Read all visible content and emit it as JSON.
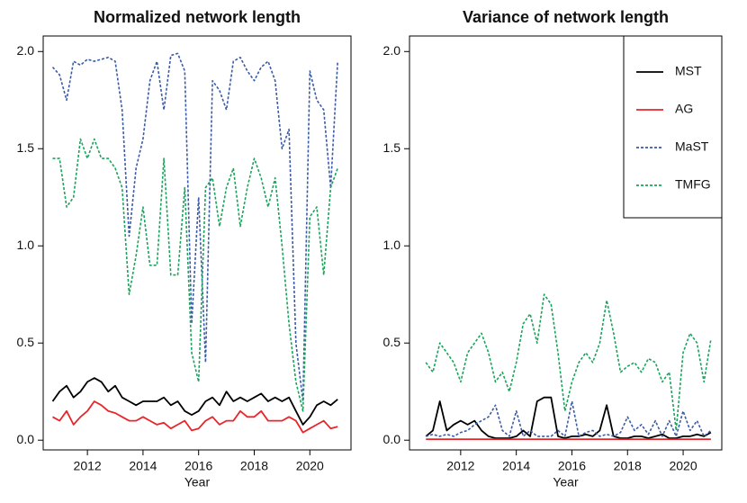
{
  "chart_data": [
    {
      "type": "line",
      "title": "Normalized network length",
      "x_label": "Year",
      "x": [
        2010.75,
        2011,
        2011.25,
        2011.5,
        2011.75,
        2012,
        2012.25,
        2012.5,
        2012.75,
        2013,
        2013.25,
        2013.5,
        2013.75,
        2014,
        2014.25,
        2014.5,
        2014.75,
        2015,
        2015.25,
        2015.5,
        2015.75,
        2016,
        2016.25,
        2016.5,
        2016.75,
        2017,
        2017.25,
        2017.5,
        2017.75,
        2018,
        2018.25,
        2018.5,
        2018.75,
        2019,
        2019.25,
        2019.5,
        2019.75,
        2020,
        2020.25,
        2020.5,
        2020.75,
        2021
      ],
      "series": [
        {
          "name": "MST",
          "color": "#000000",
          "dashed": false,
          "values": [
            0.2,
            0.25,
            0.28,
            0.22,
            0.25,
            0.3,
            0.32,
            0.3,
            0.25,
            0.28,
            0.22,
            0.2,
            0.18,
            0.2,
            0.2,
            0.2,
            0.22,
            0.18,
            0.2,
            0.15,
            0.13,
            0.15,
            0.2,
            0.22,
            0.18,
            0.25,
            0.2,
            0.22,
            0.2,
            0.22,
            0.24,
            0.2,
            0.22,
            0.2,
            0.22,
            0.15,
            0.08,
            0.12,
            0.18,
            0.2,
            0.18,
            0.21
          ]
        },
        {
          "name": "AG",
          "color": "#e8262a",
          "dashed": false,
          "values": [
            0.12,
            0.1,
            0.15,
            0.08,
            0.12,
            0.15,
            0.2,
            0.18,
            0.15,
            0.14,
            0.12,
            0.1,
            0.1,
            0.12,
            0.1,
            0.08,
            0.09,
            0.06,
            0.08,
            0.1,
            0.05,
            0.06,
            0.1,
            0.12,
            0.08,
            0.1,
            0.1,
            0.15,
            0.12,
            0.12,
            0.15,
            0.1,
            0.1,
            0.1,
            0.12,
            0.1,
            0.04,
            0.06,
            0.08,
            0.1,
            0.06,
            0.07
          ]
        },
        {
          "name": "MaST",
          "color": "#3a5aa8",
          "dashed": true,
          "values": [
            1.92,
            1.88,
            1.75,
            1.95,
            1.93,
            1.96,
            1.95,
            1.96,
            1.97,
            1.95,
            1.7,
            1.05,
            1.4,
            1.55,
            1.85,
            1.95,
            1.7,
            1.98,
            1.99,
            1.9,
            0.6,
            1.25,
            0.4,
            1.85,
            1.8,
            1.7,
            1.95,
            1.97,
            1.9,
            1.85,
            1.92,
            1.95,
            1.85,
            1.5,
            1.6,
            0.5,
            0.2,
            1.9,
            1.75,
            1.7,
            1.3,
            1.95
          ]
        },
        {
          "name": "TMFG",
          "color": "#19a35a",
          "dashed": true,
          "values": [
            1.45,
            1.45,
            1.2,
            1.25,
            1.55,
            1.45,
            1.55,
            1.45,
            1.45,
            1.4,
            1.3,
            0.75,
            0.95,
            1.2,
            0.9,
            0.9,
            1.45,
            0.85,
            0.85,
            1.3,
            0.45,
            0.3,
            1.3,
            1.35,
            1.1,
            1.3,
            1.4,
            1.1,
            1.3,
            1.45,
            1.35,
            1.2,
            1.35,
            1.0,
            0.6,
            0.3,
            0.15,
            1.15,
            1.2,
            0.85,
            1.3,
            1.4
          ]
        }
      ],
      "xlim": [
        2010.41,
        2021.48
      ],
      "xticks": [
        2012,
        2014,
        2016,
        2018,
        2020
      ],
      "ylim": [
        -0.05,
        2.08
      ],
      "yticks": [
        {
          "value": 0,
          "label": "0.0"
        },
        0.5,
        {
          "value": 1,
          "label": "1.0"
        },
        1.5,
        {
          "value": 2,
          "label": "2.0"
        }
      ]
    },
    {
      "type": "line",
      "title": "Variance of network length",
      "x_label": "Year",
      "legend": "top right",
      "x": [
        2010.75,
        2011,
        2011.25,
        2011.5,
        2011.75,
        2012,
        2012.25,
        2012.5,
        2012.75,
        2013,
        2013.25,
        2013.5,
        2013.75,
        2014,
        2014.25,
        2014.5,
        2014.75,
        2015,
        2015.25,
        2015.5,
        2015.75,
        2016,
        2016.25,
        2016.5,
        2016.75,
        2017,
        2017.25,
        2017.5,
        2017.75,
        2018,
        2018.25,
        2018.5,
        2018.75,
        2019,
        2019.25,
        2019.5,
        2019.75,
        2020,
        2020.25,
        2020.5,
        2020.75,
        2021
      ],
      "series": [
        {
          "name": "MST",
          "color": "#000000",
          "dashed": false,
          "values": [
            0.02,
            0.05,
            0.2,
            0.05,
            0.08,
            0.1,
            0.08,
            0.1,
            0.05,
            0.02,
            0.01,
            0.01,
            0.01,
            0.02,
            0.05,
            0.02,
            0.2,
            0.22,
            0.22,
            0.02,
            0.01,
            0.02,
            0.02,
            0.03,
            0.02,
            0.05,
            0.18,
            0.02,
            0.01,
            0.01,
            0.02,
            0.02,
            0.01,
            0.02,
            0.03,
            0.01,
            0.01,
            0.02,
            0.02,
            0.03,
            0.02,
            0.04
          ]
        },
        {
          "name": "AG",
          "color": "#e8262a",
          "dashed": false,
          "values": [
            0.005,
            0.005,
            0.005,
            0.005,
            0.005,
            0.005,
            0.005,
            0.005,
            0.005,
            0.005,
            0.005,
            0.005,
            0.005,
            0.005,
            0.005,
            0.005,
            0.005,
            0.005,
            0.005,
            0.005,
            0.005,
            0.005,
            0.005,
            0.005,
            0.005,
            0.005,
            0.005,
            0.005,
            0.005,
            0.005,
            0.005,
            0.005,
            0.005,
            0.005,
            0.005,
            0.005,
            0.005,
            0.005,
            0.005,
            0.005,
            0.005,
            0.005
          ]
        },
        {
          "name": "MaST",
          "color": "#3a5aa8",
          "dashed": true,
          "values": [
            0.02,
            0.03,
            0.02,
            0.03,
            0.02,
            0.04,
            0.05,
            0.08,
            0.1,
            0.12,
            0.18,
            0.05,
            0.02,
            0.15,
            0.02,
            0.05,
            0.02,
            0.02,
            0.02,
            0.05,
            0.02,
            0.2,
            0.02,
            0.04,
            0.05,
            0.02,
            0.03,
            0.02,
            0.04,
            0.12,
            0.05,
            0.08,
            0.03,
            0.1,
            0.02,
            0.1,
            0.02,
            0.15,
            0.05,
            0.1,
            0.02,
            0.05
          ]
        },
        {
          "name": "TMFG",
          "color": "#19a35a",
          "dashed": true,
          "values": [
            0.4,
            0.35,
            0.5,
            0.45,
            0.4,
            0.3,
            0.45,
            0.5,
            0.55,
            0.45,
            0.3,
            0.35,
            0.25,
            0.4,
            0.6,
            0.65,
            0.5,
            0.75,
            0.7,
            0.45,
            0.15,
            0.3,
            0.4,
            0.45,
            0.4,
            0.5,
            0.72,
            0.55,
            0.35,
            0.38,
            0.4,
            0.35,
            0.42,
            0.4,
            0.3,
            0.35,
            0.05,
            0.45,
            0.55,
            0.5,
            0.3,
            0.52
          ]
        }
      ],
      "xlim": [
        2010.16,
        2021.39
      ],
      "xticks": [
        2012,
        2014,
        2016,
        2018,
        2020
      ],
      "ylim": [
        -0.05,
        2.08
      ],
      "yticks": [
        {
          "value": 0,
          "label": "0.0"
        },
        0.5,
        {
          "value": 1,
          "label": "1.0"
        },
        1.5,
        {
          "value": 2,
          "label": "2.0"
        }
      ]
    }
  ]
}
